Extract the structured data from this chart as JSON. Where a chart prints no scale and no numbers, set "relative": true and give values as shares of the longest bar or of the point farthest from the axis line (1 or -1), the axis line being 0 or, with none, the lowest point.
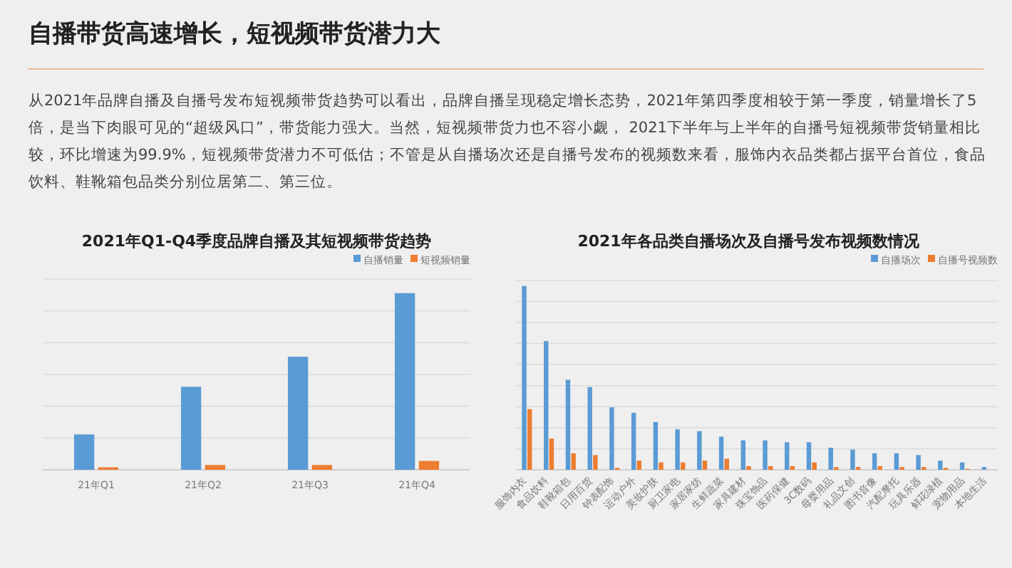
{
  "chart_data": [
    {
      "type": "other",
      "title": "自播带货高速增长，短视频带货潜力大",
      "subtitle": "从2021年品牌自播及自播号发布短视频带货趋势可以看出，品牌自播呈现稳定增长态势，2021年第四季度相较于第一季度，销量增长了5倍，是当下肉眼可见的“超级风口”，带货能力强大。当然，短视频带货力也不容小觑， 2021下半年与上半年的自播号短视频带货销量相比较，环比增速为99.9%，短视频带货潜力不可低估；不管是从自播场次还是自播号发布的视频数来看，服饰内衣品类都占据平台首位，食品饮料、鞋靴箱包品类分别位居第二、第三位。"
    },
    {
      "type": "bar",
      "title": "2021年Q1-Q4季度品牌自播及其短视频带货趋势",
      "relative": true,
      "grid": "y",
      "legend": "top right",
      "categories": [
        "21年Q1",
        "21年Q2",
        "21年Q3",
        "21年Q4"
      ],
      "series": [
        {
          "name": "自播销量",
          "color": "#5b9bd5",
          "values": [
            0.2,
            0.47,
            0.64,
            1
          ]
        },
        {
          "name": "短视频销量",
          "color": "#ed7d31",
          "values": [
            0.014,
            0.027,
            0.027,
            0.05
          ]
        }
      ]
    },
    {
      "type": "bar",
      "title": "2021年各品类自播场次及自播号发布视频数情况",
      "relative": true,
      "grid": "y",
      "legend": "top right",
      "categories": [
        "服饰内衣",
        "食品饮料",
        "鞋靴箱包",
        "日用百货",
        "钟表配饰",
        "运动户外",
        "美妆护肤",
        "厨卫家电",
        "家居家纺",
        "生鲜蔬菜",
        "家具建材",
        "珠宝饰品",
        "医药保健",
        "3C数码",
        "母婴用品",
        "礼品文创",
        "图书音像",
        "汽配摩托",
        "玩具乐器",
        "鲜花绿植",
        "宠物用品",
        "本地生活"
      ],
      "series": [
        {
          "name": "自播场次",
          "color": "#5b9bd5",
          "values": [
            1,
            0.7,
            0.49,
            0.45,
            0.34,
            0.31,
            0.26,
            0.22,
            0.21,
            0.18,
            0.16,
            0.16,
            0.15,
            0.15,
            0.12,
            0.11,
            0.09,
            0.09,
            0.08,
            0.05,
            0.04,
            0.015
          ]
        },
        {
          "name": "自播号视频数",
          "color": "#ed7d31",
          "values": [
            0.33,
            0.17,
            0.09,
            0.08,
            0.01,
            0.05,
            0.04,
            0.04,
            0.05,
            0.06,
            0.02,
            0.02,
            0.02,
            0.04,
            0.015,
            0.015,
            0.02,
            0.015,
            0.015,
            0.01,
            0.005,
            null
          ]
        }
      ]
    }
  ]
}
